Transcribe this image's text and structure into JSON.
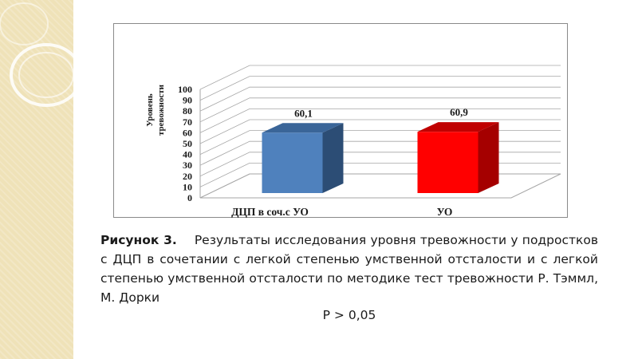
{
  "slide": {
    "caption_label": "Рисунок 3.",
    "caption_text": "Результаты исследования уровня тревожности у подростков с ДЦП в сочетании с легкой степенью умственной отсталости и с легкой степенью умственной отсталости по методике тест тревожности Р. Тэммл, М. Дорки",
    "p_value": "P > 0,05",
    "colors": {
      "side_strip": "#efe2b8",
      "frame_border": "#8a8a8a"
    }
  },
  "chart_data": {
    "type": "bar",
    "style": "3d",
    "categories": [
      "ДЦП в соч.с УО",
      "УО"
    ],
    "values": [
      60.1,
      60.9
    ],
    "value_labels": [
      "60,1",
      "60,9"
    ],
    "ylabel_lines": [
      "Уровень",
      "тревожности"
    ],
    "ylim": [
      0,
      100
    ],
    "yticks": [
      0,
      10,
      20,
      30,
      40,
      50,
      60,
      70,
      80,
      90,
      100
    ],
    "grid": true,
    "legend": "none",
    "colors": [
      "#4f81bd",
      "#ff0000"
    ],
    "side_colors": [
      "#2c4d75",
      "#a50000"
    ],
    "top_colors": [
      "#3a6598",
      "#c00000"
    ]
  }
}
